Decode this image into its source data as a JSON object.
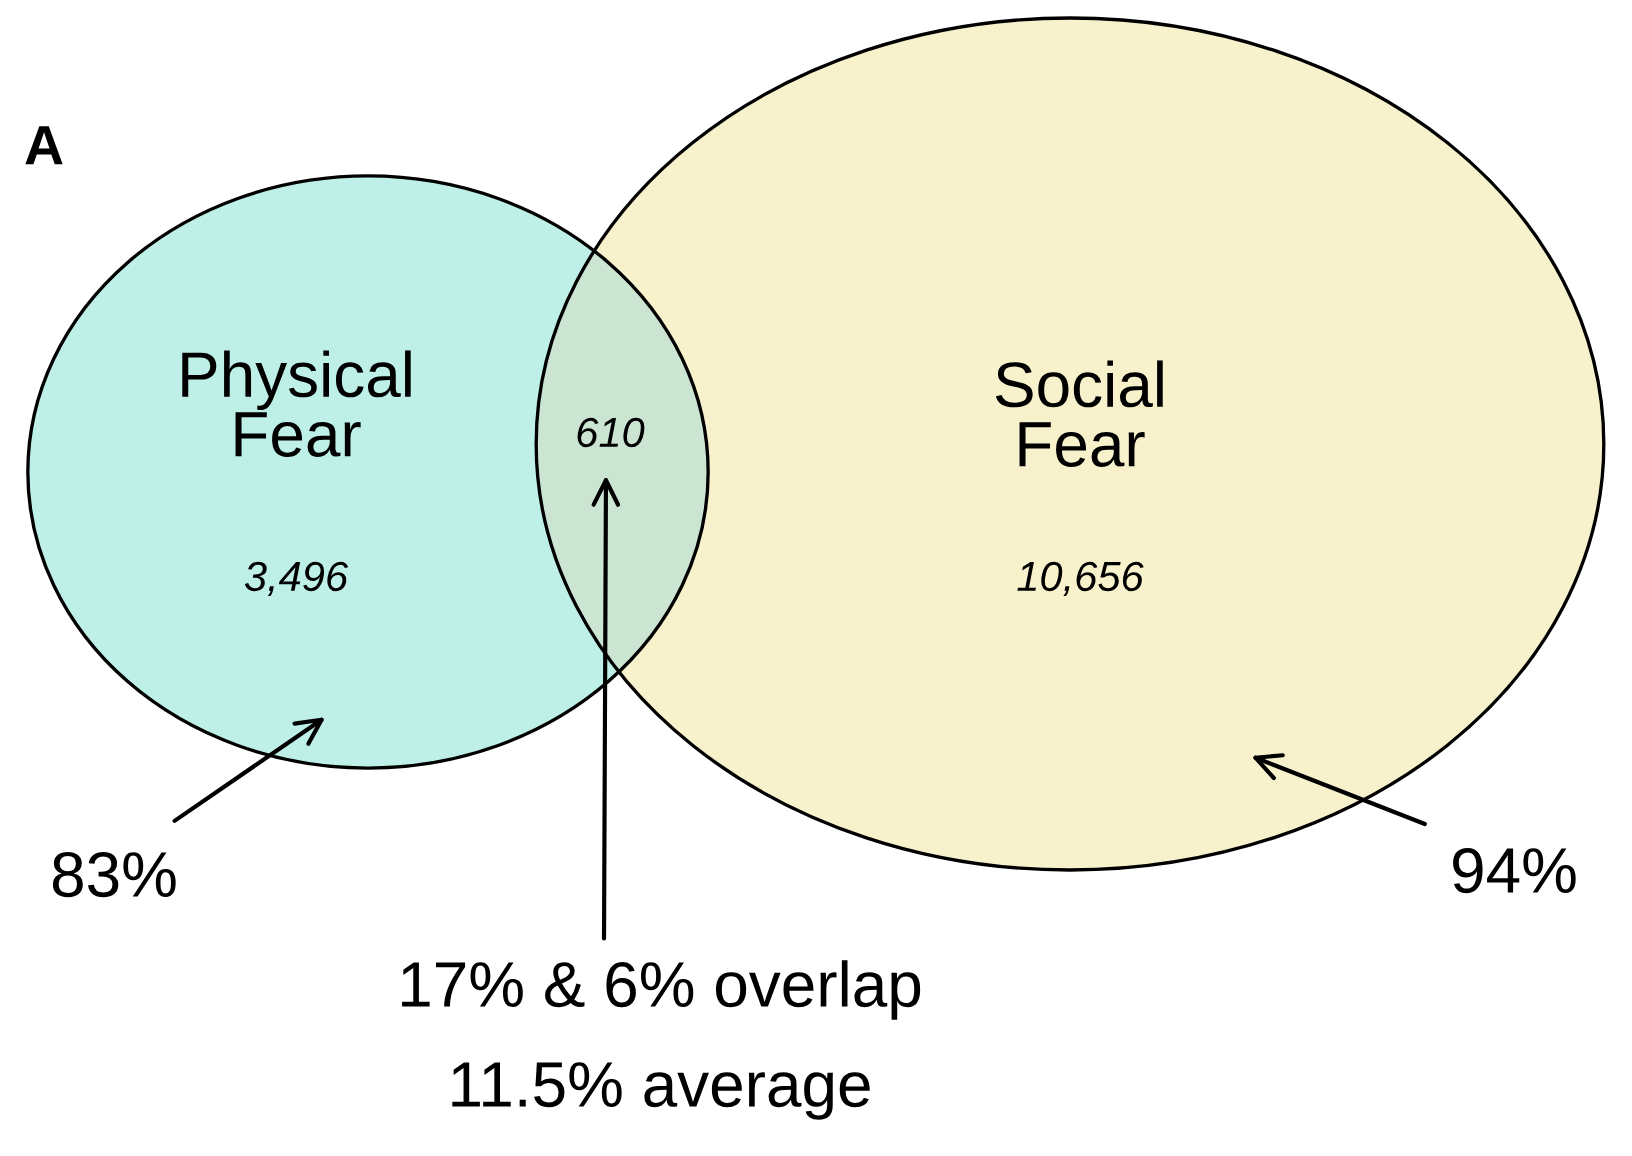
{
  "chart_data": {
    "type": "other",
    "categories": [
      "Physical Fear",
      "Social Fear"
    ],
    "values": [
      3496,
      10656
    ],
    "value_labels": [
      "3,496",
      "10,656"
    ],
    "colors": [
      "#bff0e8",
      "#f7f2cc"
    ],
    "annotations": [
      "A",
      "83%",
      "94%",
      "17% & 6% overlap",
      "11.5% average",
      "610"
    ]
  }
}
